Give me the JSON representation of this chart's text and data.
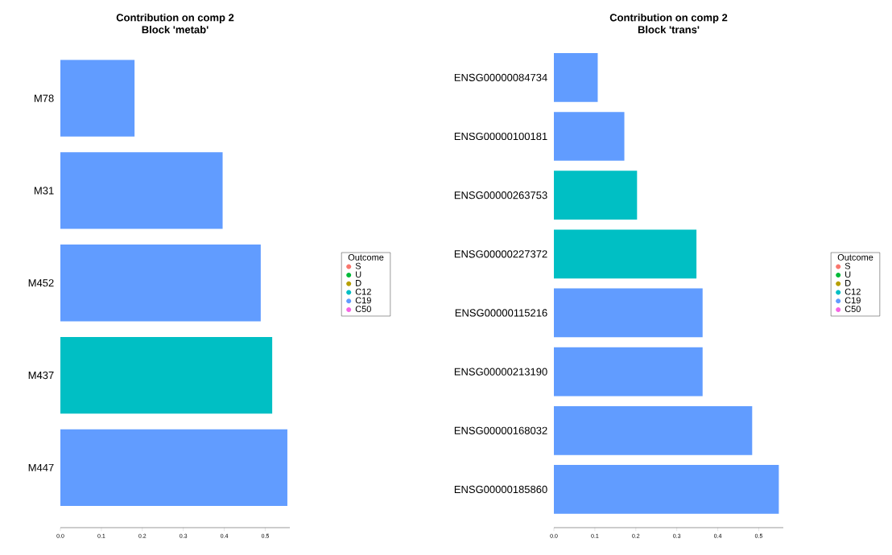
{
  "chart_data": [
    {
      "type": "bar",
      "orientation": "horizontal",
      "title": "Contribution on comp 2",
      "subtitle": "Block 'metab'",
      "categories": [
        "M78",
        "M31",
        "M452",
        "M437",
        "M447"
      ],
      "series": [
        {
          "name": "S",
          "color": "#f8766d",
          "values": [
            null,
            null,
            null,
            null,
            null
          ]
        },
        {
          "name": "U",
          "color": "#00ba38",
          "values": [
            null,
            null,
            null,
            null,
            null
          ]
        },
        {
          "name": "D",
          "color": "#b79f00",
          "values": [
            null,
            null,
            null,
            null,
            null
          ]
        },
        {
          "name": "C12",
          "color": "#00bfc4",
          "values": [
            null,
            null,
            null,
            0.517,
            null
          ]
        },
        {
          "name": "C19",
          "color": "#619cff",
          "values": [
            0.181,
            0.396,
            0.489,
            null,
            0.554
          ]
        },
        {
          "name": "C50",
          "color": "#f564e3",
          "values": [
            null,
            null,
            null,
            null,
            null
          ]
        }
      ],
      "xlim": [
        0,
        0.56
      ],
      "xticks": [
        {
          "value": 0,
          "label": "0.0"
        },
        {
          "value": 0.1,
          "label": "0.1"
        },
        {
          "value": 0.2,
          "label": "0.2"
        },
        {
          "value": 0.3,
          "label": "0.3"
        },
        {
          "value": 0.4,
          "label": "0.4"
        },
        {
          "value": 0.5,
          "label": "0.5"
        }
      ],
      "legend": "right",
      "legend_title": "Outcome"
    },
    {
      "type": "bar",
      "orientation": "horizontal",
      "title": "Contribution on comp 2",
      "subtitle": "Block 'trans'",
      "categories": [
        "ENSG00000084734",
        "ENSG00000100181",
        "ENSG00000263753",
        "ENSG00000227372",
        "ENSG00000115216",
        "ENSG00000213190",
        "ENSG00000168032",
        "ENSG00000185860"
      ],
      "series": [
        {
          "name": "S",
          "color": "#f8766d",
          "values": [
            null,
            null,
            null,
            null,
            null,
            null,
            null,
            null
          ]
        },
        {
          "name": "U",
          "color": "#00ba38",
          "values": [
            null,
            null,
            null,
            null,
            null,
            null,
            null,
            null
          ]
        },
        {
          "name": "D",
          "color": "#b79f00",
          "values": [
            null,
            null,
            null,
            null,
            null,
            null,
            null,
            null
          ]
        },
        {
          "name": "C12",
          "color": "#00bfc4",
          "values": [
            null,
            null,
            0.203,
            0.348,
            null,
            null,
            null,
            null
          ]
        },
        {
          "name": "C19",
          "color": "#619cff",
          "values": [
            0.107,
            0.172,
            null,
            null,
            0.363,
            0.363,
            0.484,
            0.549
          ]
        },
        {
          "name": "C50",
          "color": "#f564e3",
          "values": [
            null,
            null,
            null,
            null,
            null,
            null,
            null,
            null
          ]
        }
      ],
      "xlim": [
        0,
        0.56
      ],
      "xticks": [
        {
          "value": 0,
          "label": "0.0"
        },
        {
          "value": 0.1,
          "label": "0.1"
        },
        {
          "value": 0.2,
          "label": "0.2"
        },
        {
          "value": 0.3,
          "label": "0.3"
        },
        {
          "value": 0.4,
          "label": "0.4"
        },
        {
          "value": 0.5,
          "label": "0.5"
        }
      ],
      "legend": "right",
      "legend_title": "Outcome"
    }
  ]
}
